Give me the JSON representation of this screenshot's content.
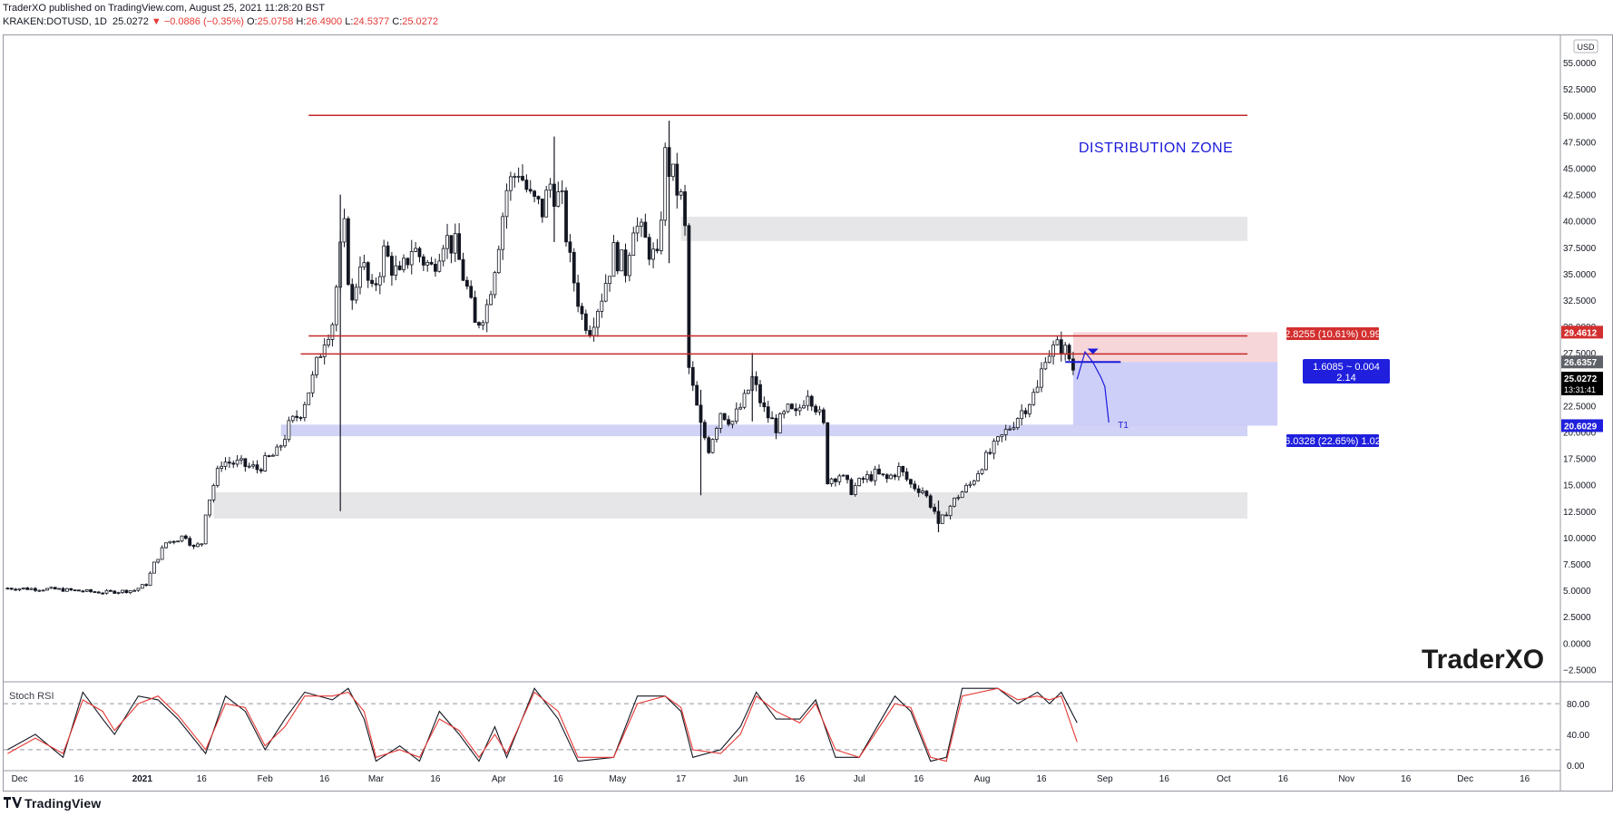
{
  "header": {
    "publisher_line": "TraderXO published on TradingView.com, August 25, 2021 11:28:20 BST",
    "symbol": "KRAKEN:DOTUSD, 1D",
    "last": "25.0272",
    "change": "▼ −0.0886 (−0.35%)",
    "o_label": "O:",
    "o": "25.0758",
    "h_label": "H:",
    "h": "26.4900",
    "l_label": "L:",
    "l": "24.5377",
    "c_label": "C:",
    "c": "25.0272"
  },
  "footer": {
    "brand": "TradingView"
  },
  "watermark": "TraderXO",
  "currency_button": "USD",
  "colors": {
    "up": "#ffffff",
    "down": "#131722",
    "resistance": "#c62828",
    "support_zone": "#c8cbf5",
    "grey_zone": "#e6e6e8",
    "rsi_k": "#131722",
    "rsi_d": "#e53935",
    "annot": "#1a1adb"
  },
  "chart_data": [
    {
      "type": "candlestick",
      "title": "KRAKEN:DOTUSD, 1D",
      "ylim": [
        -3.5,
        57.5
      ],
      "y_ticks": [
        -2.5,
        0,
        2.5,
        5,
        7.5,
        10,
        12.5,
        15,
        17.5,
        20,
        22.5,
        25,
        27.5,
        30,
        32.5,
        35,
        37.5,
        40,
        42.5,
        45,
        47.5,
        50,
        52.5,
        55
      ],
      "y_tick_labels": [
        "−2.5000",
        "0.0000",
        "2.5000",
        "5.0000",
        "7.5000",
        "10.0000",
        "12.5000",
        "15.0000",
        "17.5000",
        "20.0000",
        "22.5000",
        "25.0000",
        "27.5000",
        "30.0000",
        "32.5000",
        "35.0000",
        "37.5000",
        "40.0000",
        "42.5000",
        "45.0000",
        "47.5000",
        "50.0000",
        "52.5000",
        "55.0000"
      ],
      "x_labels": [
        "Dec",
        "16",
        "2021",
        "16",
        "Feb",
        "16",
        "Mar",
        "16",
        "Apr",
        "16",
        "May",
        "17",
        "Jun",
        "16",
        "Jul",
        "16",
        "Aug",
        "16",
        "Sep",
        "16",
        "Oct",
        "16",
        "Nov",
        "16",
        "Dec",
        "16"
      ],
      "x_dates": [
        "2020-12-01",
        "2020-12-16",
        "2021-01-01",
        "2021-01-16",
        "2021-02-01",
        "2021-02-16",
        "2021-03-01",
        "2021-03-16",
        "2021-04-01",
        "2021-04-16",
        "2021-05-01",
        "2021-05-17",
        "2021-06-01",
        "2021-06-16",
        "2021-07-01",
        "2021-07-16",
        "2021-08-01",
        "2021-08-16",
        "2021-09-01",
        "2021-09-16",
        "2021-10-01",
        "2021-10-16",
        "2021-11-01",
        "2021-11-16",
        "2021-12-01",
        "2021-12-16"
      ],
      "close_path": [
        [
          "2020-11-28",
          5.2
        ],
        [
          "2020-12-10",
          5.1
        ],
        [
          "2020-12-22",
          4.8
        ],
        [
          "2020-12-30",
          5.0
        ],
        [
          "2021-01-02",
          5.6
        ],
        [
          "2021-01-04",
          7.5
        ],
        [
          "2021-01-07",
          9.5
        ],
        [
          "2021-01-12",
          10.2
        ],
        [
          "2021-01-14",
          9.0
        ],
        [
          "2021-01-16",
          9.5
        ],
        [
          "2021-01-17",
          12.5
        ],
        [
          "2021-01-19",
          15.0
        ],
        [
          "2021-01-21",
          17.2
        ],
        [
          "2021-01-25",
          17.0
        ],
        [
          "2021-01-30",
          16.5
        ],
        [
          "2021-02-02",
          17.5
        ],
        [
          "2021-02-04",
          18.0
        ],
        [
          "2021-02-07",
          20.5
        ],
        [
          "2021-02-10",
          22.0
        ],
        [
          "2021-02-13",
          25.0
        ],
        [
          "2021-02-16",
          29.0
        ],
        [
          "2021-02-18",
          30.5
        ],
        [
          "2021-02-20",
          37.0
        ],
        [
          "2021-02-21",
          39.0
        ],
        [
          "2021-02-22",
          35.0
        ],
        [
          "2021-02-23",
          32.0
        ],
        [
          "2021-02-25",
          36.5
        ],
        [
          "2021-02-28",
          33.0
        ],
        [
          "2021-03-03",
          37.0
        ],
        [
          "2021-03-07",
          34.5
        ],
        [
          "2021-03-10",
          37.5
        ],
        [
          "2021-03-15",
          35.5
        ],
        [
          "2021-03-18",
          38.5
        ],
        [
          "2021-03-21",
          37.5
        ],
        [
          "2021-03-24",
          33.5
        ],
        [
          "2021-03-26",
          30.0
        ],
        [
          "2021-03-29",
          32.0
        ],
        [
          "2021-03-31",
          36.0
        ],
        [
          "2021-04-03",
          43.0
        ],
        [
          "2021-04-06",
          45.0
        ],
        [
          "2021-04-09",
          42.0
        ],
        [
          "2021-04-12",
          41.0
        ],
        [
          "2021-04-14",
          43.5
        ],
        [
          "2021-04-17",
          41.5
        ],
        [
          "2021-04-19",
          36.0
        ],
        [
          "2021-04-22",
          31.0
        ],
        [
          "2021-04-24",
          30.0
        ],
        [
          "2021-04-27",
          33.0
        ],
        [
          "2021-04-30",
          37.0
        ],
        [
          "2021-05-03",
          35.5
        ],
        [
          "2021-05-05",
          40.0
        ],
        [
          "2021-05-08",
          38.0
        ],
        [
          "2021-05-11",
          36.0
        ],
        [
          "2021-05-13",
          46.0
        ],
        [
          "2021-05-15",
          44.0
        ],
        [
          "2021-05-17",
          42.0
        ],
        [
          "2021-05-18",
          39.0
        ],
        [
          "2021-05-19",
          26.0
        ],
        [
          "2021-05-20",
          24.0
        ],
        [
          "2021-05-22",
          20.5
        ],
        [
          "2021-05-24",
          18.5
        ],
        [
          "2021-05-27",
          22.0
        ],
        [
          "2021-05-30",
          21.0
        ],
        [
          "2021-06-02",
          23.0
        ],
        [
          "2021-06-04",
          25.0
        ],
        [
          "2021-06-07",
          22.0
        ],
        [
          "2021-06-10",
          20.5
        ],
        [
          "2021-06-13",
          22.0
        ],
        [
          "2021-06-15",
          21.5
        ],
        [
          "2021-06-18",
          24.0
        ],
        [
          "2021-06-20",
          22.5
        ],
        [
          "2021-06-22",
          20.5
        ],
        [
          "2021-06-23",
          15.5
        ],
        [
          "2021-06-26",
          16.0
        ],
        [
          "2021-06-29",
          14.5
        ],
        [
          "2021-07-02",
          15.5
        ],
        [
          "2021-07-05",
          16.0
        ],
        [
          "2021-07-08",
          15.5
        ],
        [
          "2021-07-11",
          16.5
        ],
        [
          "2021-07-14",
          15.0
        ],
        [
          "2021-07-17",
          14.5
        ],
        [
          "2021-07-20",
          12.5
        ],
        [
          "2021-07-21",
          11.0
        ],
        [
          "2021-07-23",
          12.5
        ],
        [
          "2021-07-26",
          14.0
        ],
        [
          "2021-07-29",
          15.0
        ],
        [
          "2021-08-01",
          17.0
        ],
        [
          "2021-08-03",
          18.0
        ],
        [
          "2021-08-06",
          19.5
        ],
        [
          "2021-08-09",
          21.0
        ],
        [
          "2021-08-12",
          22.5
        ],
        [
          "2021-08-15",
          24.0
        ],
        [
          "2021-08-17",
          27.5
        ],
        [
          "2021-08-19",
          27.8
        ],
        [
          "2021-08-21",
          28.2
        ],
        [
          "2021-08-23",
          27.0
        ],
        [
          "2021-08-24",
          26.0
        ],
        [
          "2021-08-25",
          25.0272
        ]
      ],
      "wicks": [
        [
          "2021-02-20",
          42.5,
          12.5
        ],
        [
          "2021-05-14",
          49.5,
          36.0
        ],
        [
          "2021-05-22",
          24.0,
          14.0
        ],
        [
          "2021-04-15",
          48.0,
          38.0
        ],
        [
          "2021-07-21",
          13.5,
          10.5
        ],
        [
          "2021-06-04",
          27.5,
          21.0
        ]
      ],
      "levels": [
        {
          "label": "",
          "price": 50.0,
          "from": "2021-02-12",
          "to": "2021-10-07"
        },
        {
          "label": "",
          "price": 29.1,
          "from": "2021-02-12",
          "to": "2021-10-07"
        },
        {
          "label": "",
          "price": 27.4,
          "from": "2021-02-10",
          "to": "2021-10-07"
        }
      ],
      "zones": [
        {
          "kind": "grey",
          "top": 40.4,
          "bottom": 38.1,
          "from": "2021-05-17",
          "to": "2021-10-07"
        },
        {
          "kind": "blue",
          "top": 20.7,
          "bottom": 19.6,
          "from": "2021-02-05",
          "to": "2021-10-07"
        },
        {
          "kind": "grey",
          "top": 14.3,
          "bottom": 11.8,
          "from": "2021-01-19",
          "to": "2021-10-07"
        }
      ],
      "annotations": {
        "zone_label": "DISTRIBUTION ZONE",
        "target_label": "T1",
        "position_tool": {
          "top_label": "2.8255 (10.61%) 0.99",
          "mid_label_1": "1.6085 ~ 0.004",
          "mid_label_2": "2.14",
          "bottom_label": "6.0328 (22.65%) 1.02",
          "top_price": 29.4612,
          "entry_price": 26.6357,
          "stop_price": 20.6029
        }
      },
      "price_badges": {
        "top": "29.4612",
        "entry": "26.6357",
        "last": "25.0272",
        "countdown": "13:31:41",
        "bottom": "20.6029",
        "hidden_tick": "27.5000"
      }
    },
    {
      "type": "line",
      "title": "Stoch RSI",
      "ylim": [
        -5,
        105
      ],
      "y_ticks": [
        0,
        40,
        80
      ],
      "y_tick_labels": [
        "0.00",
        "40.00",
        "80.00"
      ],
      "bands": [
        80,
        20
      ],
      "series": [
        {
          "key": "k",
          "values": [
            [
              "2020-11-28",
              20
            ],
            [
              "2020-12-05",
              40
            ],
            [
              "2020-12-12",
              10
            ],
            [
              "2020-12-17",
              95
            ],
            [
              "2020-12-22",
              60
            ],
            [
              "2020-12-25",
              40
            ],
            [
              "2020-12-31",
              90
            ],
            [
              "2021-01-05",
              85
            ],
            [
              "2021-01-10",
              60
            ],
            [
              "2021-01-17",
              15
            ],
            [
              "2021-01-22",
              90
            ],
            [
              "2021-01-27",
              70
            ],
            [
              "2021-02-01",
              20
            ],
            [
              "2021-02-06",
              60
            ],
            [
              "2021-02-11",
              95
            ],
            [
              "2021-02-18",
              85
            ],
            [
              "2021-02-22",
              100
            ],
            [
              "2021-02-26",
              60
            ],
            [
              "2021-03-01",
              5
            ],
            [
              "2021-03-07",
              25
            ],
            [
              "2021-03-12",
              5
            ],
            [
              "2021-03-17",
              70
            ],
            [
              "2021-03-22",
              40
            ],
            [
              "2021-03-27",
              5
            ],
            [
              "2021-03-31",
              50
            ],
            [
              "2021-04-03",
              10
            ],
            [
              "2021-04-10",
              100
            ],
            [
              "2021-04-16",
              60
            ],
            [
              "2021-04-21",
              5
            ],
            [
              "2021-04-30",
              10
            ],
            [
              "2021-05-06",
              90
            ],
            [
              "2021-05-13",
              90
            ],
            [
              "2021-05-17",
              70
            ],
            [
              "2021-05-20",
              10
            ],
            [
              "2021-05-27",
              20
            ],
            [
              "2021-06-01",
              50
            ],
            [
              "2021-06-05",
              95
            ],
            [
              "2021-06-10",
              60
            ],
            [
              "2021-06-16",
              60
            ],
            [
              "2021-06-20",
              85
            ],
            [
              "2021-06-25",
              10
            ],
            [
              "2021-07-01",
              10
            ],
            [
              "2021-07-10",
              90
            ],
            [
              "2021-07-14",
              70
            ],
            [
              "2021-07-19",
              5
            ],
            [
              "2021-07-23",
              10
            ],
            [
              "2021-07-27",
              100
            ],
            [
              "2021-08-05",
              100
            ],
            [
              "2021-08-10",
              80
            ],
            [
              "2021-08-15",
              95
            ],
            [
              "2021-08-18",
              80
            ],
            [
              "2021-08-21",
              95
            ],
            [
              "2021-08-25",
              55
            ]
          ]
        },
        {
          "key": "d",
          "values": [
            [
              "2020-11-28",
              15
            ],
            [
              "2020-12-05",
              35
            ],
            [
              "2020-12-12",
              15
            ],
            [
              "2020-12-17",
              85
            ],
            [
              "2020-12-22",
              70
            ],
            [
              "2020-12-25",
              45
            ],
            [
              "2020-12-31",
              80
            ],
            [
              "2021-01-05",
              90
            ],
            [
              "2021-01-10",
              65
            ],
            [
              "2021-01-17",
              20
            ],
            [
              "2021-01-22",
              80
            ],
            [
              "2021-01-27",
              75
            ],
            [
              "2021-02-01",
              25
            ],
            [
              "2021-02-06",
              50
            ],
            [
              "2021-02-11",
              90
            ],
            [
              "2021-02-18",
              90
            ],
            [
              "2021-02-22",
              95
            ],
            [
              "2021-02-26",
              70
            ],
            [
              "2021-03-01",
              10
            ],
            [
              "2021-03-07",
              20
            ],
            [
              "2021-03-12",
              10
            ],
            [
              "2021-03-17",
              60
            ],
            [
              "2021-03-22",
              45
            ],
            [
              "2021-03-27",
              10
            ],
            [
              "2021-03-31",
              40
            ],
            [
              "2021-04-03",
              15
            ],
            [
              "2021-04-10",
              95
            ],
            [
              "2021-04-16",
              70
            ],
            [
              "2021-04-21",
              10
            ],
            [
              "2021-04-30",
              10
            ],
            [
              "2021-05-06",
              80
            ],
            [
              "2021-05-13",
              90
            ],
            [
              "2021-05-17",
              75
            ],
            [
              "2021-05-20",
              20
            ],
            [
              "2021-05-27",
              15
            ],
            [
              "2021-06-01",
              40
            ],
            [
              "2021-06-05",
              90
            ],
            [
              "2021-06-10",
              70
            ],
            [
              "2021-06-16",
              55
            ],
            [
              "2021-06-20",
              80
            ],
            [
              "2021-06-25",
              20
            ],
            [
              "2021-07-01",
              10
            ],
            [
              "2021-07-10",
              80
            ],
            [
              "2021-07-14",
              75
            ],
            [
              "2021-07-19",
              10
            ],
            [
              "2021-07-23",
              5
            ],
            [
              "2021-07-27",
              90
            ],
            [
              "2021-08-05",
              100
            ],
            [
              "2021-08-10",
              85
            ],
            [
              "2021-08-15",
              90
            ],
            [
              "2021-08-18",
              85
            ],
            [
              "2021-08-21",
              90
            ],
            [
              "2021-08-25",
              30
            ]
          ]
        }
      ]
    }
  ]
}
